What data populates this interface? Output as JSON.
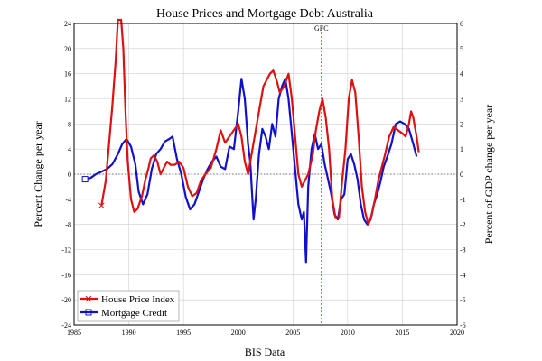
{
  "chart_data": {
    "type": "line",
    "title": "House Prices and Mortgage Debt Australia",
    "xlabel": "BIS Data",
    "ylabel": "Percent Change per year",
    "y2label": "Percent of GDP change per year",
    "xlim": [
      1985,
      2020
    ],
    "ylim": [
      -24,
      24
    ],
    "y2lim": [
      -6,
      6
    ],
    "xticks": [
      "1985",
      "1990",
      "1995",
      "2000",
      "2005",
      "2010",
      "2015",
      "2020"
    ],
    "yticks": [
      "24",
      "20",
      "16",
      "12",
      "8",
      "4",
      "0",
      "-4",
      "-8",
      "-12",
      "-16",
      "-20",
      "-24"
    ],
    "y2ticks": [
      "6",
      "5",
      "4",
      "3",
      "2",
      "1",
      "0",
      "-1",
      "-2",
      "-3",
      "-4",
      "-5",
      "-6"
    ],
    "grid": true,
    "legend": "bottom-left",
    "annotation": {
      "label": "GFC",
      "x": 2007.6
    },
    "series": [
      {
        "name": "House Price Index",
        "color": "#dd1111",
        "axis": "left",
        "points": [
          [
            1987.5,
            -5
          ],
          [
            1987.9,
            -1
          ],
          [
            1988.2,
            5
          ],
          [
            1988.5,
            11
          ],
          [
            1988.8,
            18
          ],
          [
            1989.0,
            25
          ],
          [
            1989.3,
            25
          ],
          [
            1989.5,
            20
          ],
          [
            1989.7,
            10
          ],
          [
            1989.9,
            2
          ],
          [
            1990.2,
            -4
          ],
          [
            1990.5,
            -6
          ],
          [
            1990.8,
            -5.5
          ],
          [
            1991.2,
            -3.5
          ],
          [
            1991.5,
            -1
          ],
          [
            1991.8,
            1
          ],
          [
            1992.0,
            2.5
          ],
          [
            1992.3,
            3
          ],
          [
            1992.6,
            2
          ],
          [
            1992.9,
            0
          ],
          [
            1993.2,
            1
          ],
          [
            1993.5,
            2
          ],
          [
            1993.8,
            1.5
          ],
          [
            1994.2,
            1.5
          ],
          [
            1994.6,
            2
          ],
          [
            1995.0,
            1
          ],
          [
            1995.4,
            -2
          ],
          [
            1995.8,
            -3.5
          ],
          [
            1996.2,
            -3
          ],
          [
            1996.6,
            -1
          ],
          [
            1997.0,
            0
          ],
          [
            1997.5,
            1
          ],
          [
            1998.0,
            4
          ],
          [
            1998.4,
            7
          ],
          [
            1998.8,
            5
          ],
          [
            1999.2,
            6
          ],
          [
            1999.6,
            7
          ],
          [
            2000.0,
            8
          ],
          [
            2000.3,
            6
          ],
          [
            2000.6,
            2
          ],
          [
            2000.9,
            0
          ],
          [
            2001.3,
            4
          ],
          [
            2001.7,
            8
          ],
          [
            2002.0,
            11
          ],
          [
            2002.3,
            14
          ],
          [
            2002.6,
            15
          ],
          [
            2002.9,
            16
          ],
          [
            2003.2,
            16.5
          ],
          [
            2003.5,
            15
          ],
          [
            2003.8,
            13
          ],
          [
            2004.2,
            14
          ],
          [
            2004.6,
            16
          ],
          [
            2004.9,
            12
          ],
          [
            2005.2,
            6
          ],
          [
            2005.5,
            0
          ],
          [
            2005.8,
            -2
          ],
          [
            2006.1,
            -1
          ],
          [
            2006.4,
            0
          ],
          [
            2006.8,
            3
          ],
          [
            2007.1,
            7
          ],
          [
            2007.4,
            10
          ],
          [
            2007.7,
            12
          ],
          [
            2008.0,
            9
          ],
          [
            2008.3,
            4
          ],
          [
            2008.6,
            -4
          ],
          [
            2008.9,
            -7
          ],
          [
            2009.2,
            -7
          ],
          [
            2009.5,
            -1
          ],
          [
            2009.8,
            4
          ],
          [
            2010.1,
            12
          ],
          [
            2010.4,
            15
          ],
          [
            2010.7,
            13
          ],
          [
            2011.0,
            6
          ],
          [
            2011.3,
            -2
          ],
          [
            2011.6,
            -6
          ],
          [
            2011.9,
            -8
          ],
          [
            2012.2,
            -6.5
          ],
          [
            2012.5,
            -4
          ],
          [
            2012.8,
            -1
          ],
          [
            2013.1,
            1
          ],
          [
            2013.4,
            3
          ],
          [
            2013.8,
            6
          ],
          [
            2014.2,
            7.5
          ],
          [
            2014.6,
            7
          ],
          [
            2015.0,
            6.5
          ],
          [
            2015.3,
            6
          ],
          [
            2015.6,
            8
          ],
          [
            2015.8,
            10
          ],
          [
            2016.0,
            9
          ],
          [
            2016.3,
            6
          ],
          [
            2016.5,
            3.5
          ]
        ]
      },
      {
        "name": "Mortgage Credit",
        "color": "#1111cc",
        "axis": "right",
        "points": [
          [
            1986.0,
            -0.2
          ],
          [
            1986.5,
            -0.15
          ],
          [
            1987.0,
            0
          ],
          [
            1987.5,
            0.1
          ],
          [
            1988.0,
            0.2
          ],
          [
            1988.5,
            0.4
          ],
          [
            1989.0,
            0.8
          ],
          [
            1989.4,
            1.2
          ],
          [
            1989.8,
            1.4
          ],
          [
            1990.2,
            1.1
          ],
          [
            1990.6,
            0.4
          ],
          [
            1990.9,
            -0.7
          ],
          [
            1991.3,
            -1.2
          ],
          [
            1991.7,
            -0.8
          ],
          [
            1992.1,
            0.2
          ],
          [
            1992.5,
            0.8
          ],
          [
            1992.9,
            1.0
          ],
          [
            1993.3,
            1.3
          ],
          [
            1993.7,
            1.4
          ],
          [
            1994.0,
            1.5
          ],
          [
            1994.4,
            0.6
          ],
          [
            1994.8,
            0
          ],
          [
            1995.2,
            -0.9
          ],
          [
            1995.6,
            -1.4
          ],
          [
            1996.0,
            -1.2
          ],
          [
            1996.4,
            -0.7
          ],
          [
            1996.8,
            -0.2
          ],
          [
            1997.2,
            0.2
          ],
          [
            1997.6,
            0.5
          ],
          [
            1998.0,
            0.7
          ],
          [
            1998.4,
            0.3
          ],
          [
            1998.8,
            0.2
          ],
          [
            1999.2,
            1.1
          ],
          [
            1999.6,
            1.0
          ],
          [
            2000.0,
            2.5
          ],
          [
            2000.3,
            3.8
          ],
          [
            2000.6,
            3.0
          ],
          [
            2000.9,
            1.2
          ],
          [
            2001.1,
            0.5
          ],
          [
            2001.4,
            -1.8
          ],
          [
            2001.6,
            -1.0
          ],
          [
            2001.9,
            0.8
          ],
          [
            2002.2,
            1.8
          ],
          [
            2002.5,
            1.5
          ],
          [
            2002.8,
            1.0
          ],
          [
            2003.1,
            2.0
          ],
          [
            2003.4,
            1.5
          ],
          [
            2003.7,
            3.0
          ],
          [
            2004.0,
            3.5
          ],
          [
            2004.3,
            3.8
          ],
          [
            2004.6,
            3.0
          ],
          [
            2004.9,
            1.6
          ],
          [
            2005.2,
            0.2
          ],
          [
            2005.5,
            -1.2
          ],
          [
            2005.8,
            -1.8
          ],
          [
            2006.0,
            -1.5
          ],
          [
            2006.2,
            -3.5
          ],
          [
            2006.4,
            -0.5
          ],
          [
            2006.7,
            1.0
          ],
          [
            2007.0,
            1.6
          ],
          [
            2007.3,
            1.0
          ],
          [
            2007.6,
            1.2
          ],
          [
            2007.9,
            0.4
          ],
          [
            2008.2,
            -0.2
          ],
          [
            2008.5,
            -0.8
          ],
          [
            2008.8,
            -1.6
          ],
          [
            2009.1,
            -1.8
          ],
          [
            2009.4,
            -1.0
          ],
          [
            2009.7,
            -0.8
          ],
          [
            2010.0,
            0.6
          ],
          [
            2010.3,
            0.8
          ],
          [
            2010.6,
            0.4
          ],
          [
            2010.9,
            -0.2
          ],
          [
            2011.2,
            -1.2
          ],
          [
            2011.5,
            -1.8
          ],
          [
            2011.8,
            -2.0
          ],
          [
            2012.1,
            -1.8
          ],
          [
            2012.4,
            -1.2
          ],
          [
            2012.7,
            -0.8
          ],
          [
            2013.0,
            -0.3
          ],
          [
            2013.3,
            0.3
          ],
          [
            2013.7,
            0.8
          ],
          [
            2014.0,
            1.2
          ],
          [
            2014.4,
            2.0
          ],
          [
            2014.8,
            2.1
          ],
          [
            2015.2,
            2.0
          ],
          [
            2015.6,
            1.8
          ],
          [
            2016.0,
            1.2
          ],
          [
            2016.3,
            0.7
          ]
        ]
      }
    ]
  }
}
